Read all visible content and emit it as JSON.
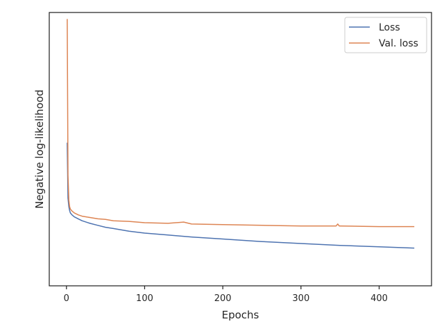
{
  "chart_data": {
    "type": "line",
    "xlabel": "Epochs",
    "ylabel": "Negative log-likelihood",
    "xlim": [
      -22,
      467
    ],
    "ylim": [
      -0.2,
      4.0
    ],
    "xticks": [
      0,
      100,
      200,
      300,
      400
    ],
    "xtick_labels": [
      "0",
      "100",
      "200",
      "300",
      "400"
    ],
    "yticks_visible": false,
    "grid": false,
    "legend_position": "top-right",
    "series": [
      {
        "name": "Loss",
        "color": "#4c72b0",
        "x": [
          1,
          2,
          3,
          4,
          5,
          7,
          10,
          15,
          20,
          30,
          40,
          50,
          60,
          80,
          100,
          130,
          160,
          200,
          250,
          300,
          350,
          400,
          445
        ],
        "y": [
          2.0,
          1.15,
          1.02,
          0.96,
          0.92,
          0.89,
          0.86,
          0.83,
          0.8,
          0.76,
          0.73,
          0.7,
          0.68,
          0.64,
          0.61,
          0.58,
          0.55,
          0.52,
          0.48,
          0.45,
          0.42,
          0.4,
          0.38
        ]
      },
      {
        "name": "Val. loss",
        "color": "#dd8452",
        "x": [
          1,
          2,
          3,
          4,
          5,
          7,
          10,
          15,
          20,
          30,
          40,
          50,
          60,
          80,
          100,
          130,
          150,
          160,
          200,
          250,
          300,
          345,
          347,
          349,
          350,
          400,
          445
        ],
        "y": [
          3.9,
          1.5,
          1.12,
          1.02,
          0.98,
          0.95,
          0.92,
          0.89,
          0.87,
          0.85,
          0.83,
          0.82,
          0.8,
          0.79,
          0.77,
          0.76,
          0.78,
          0.75,
          0.74,
          0.73,
          0.72,
          0.72,
          0.75,
          0.72,
          0.72,
          0.71,
          0.71
        ]
      }
    ]
  }
}
